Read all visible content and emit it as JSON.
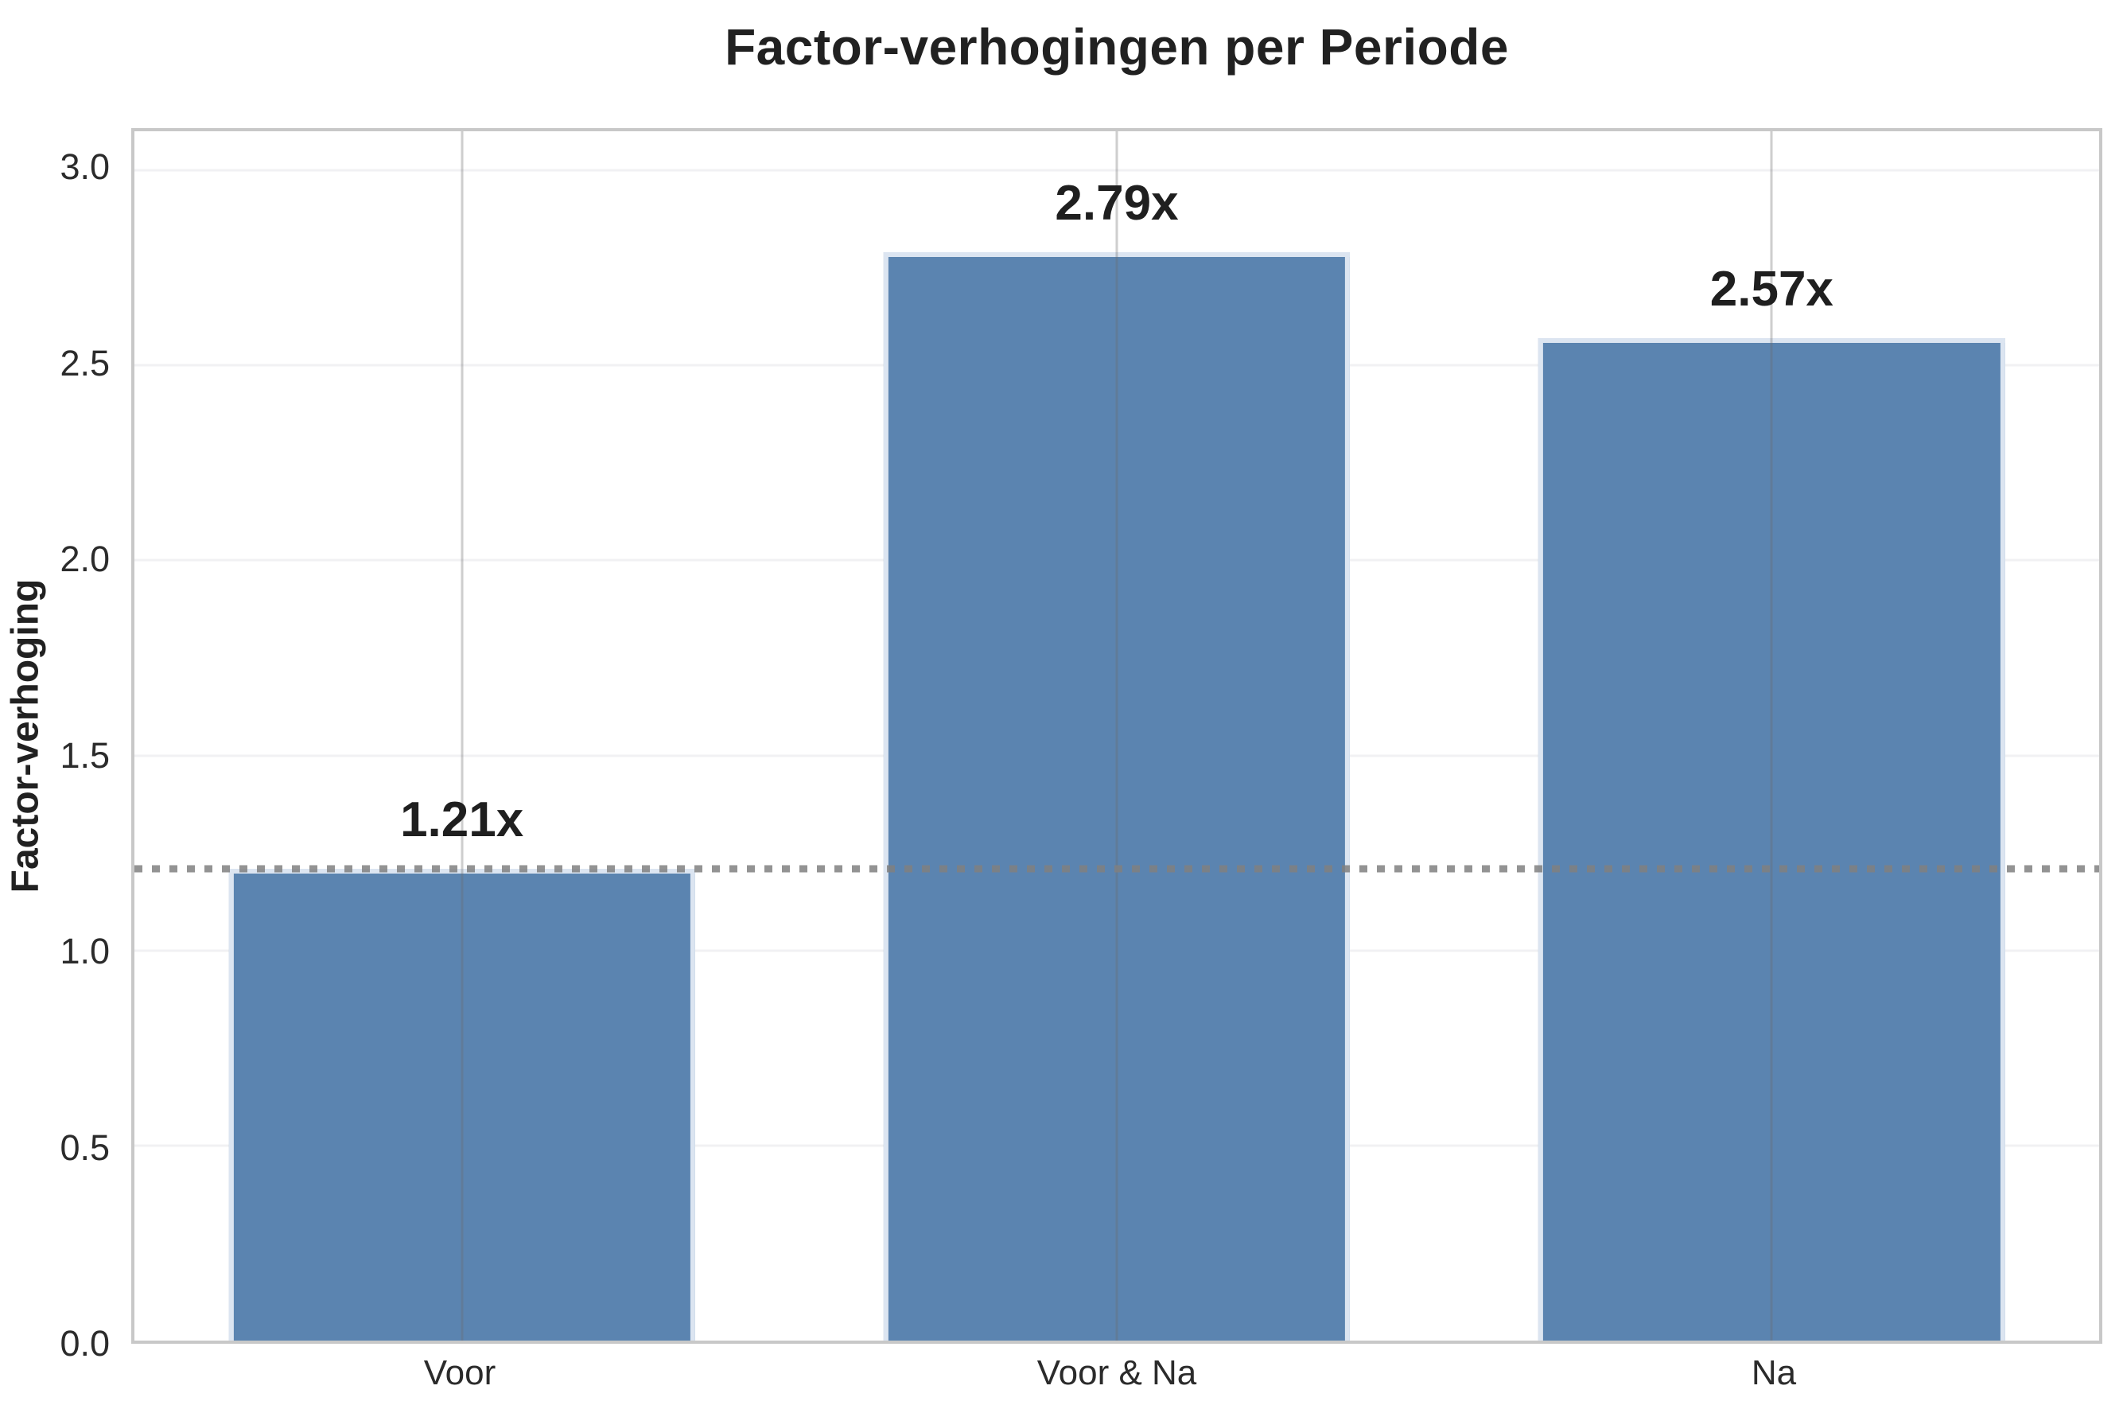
{
  "chart_data": {
    "type": "bar",
    "title": "Factor-verhogingen per Periode",
    "ylabel": "Factor-verhoging",
    "xlabel": "",
    "categories": [
      "Voor",
      "Voor & Na",
      "Na"
    ],
    "values": [
      1.21,
      2.79,
      2.57
    ],
    "bar_value_labels": [
      "1.21x",
      "2.79x",
      "2.57x"
    ],
    "ylim": [
      0,
      3.1
    ],
    "yticks": [
      0,
      0.5,
      1,
      1.5,
      2,
      2.5,
      3
    ],
    "ytick_labels": [
      "0.0",
      "0.5",
      "1.0",
      "1.5",
      "2.0",
      "2.5",
      "3.0"
    ],
    "reference_line": {
      "value": 1.21,
      "style": "dotted"
    },
    "grid": {
      "horizontal": true,
      "vertical": true,
      "vertical_on_top": true
    },
    "legend": null,
    "bar_width_fraction": 0.712
  },
  "colors": {
    "bar_fill": "#5b84b0",
    "bar_edge": "#dce5f1",
    "reference_line": "rgba(128,128,128,0.85)",
    "grid_vertical": "rgba(105,105,105,0.33)",
    "grid_horizontal": "#f1f1f3",
    "plot_border": "#c8c8c8",
    "title_text": "#212121",
    "tick_text": "#2b2b2b"
  }
}
